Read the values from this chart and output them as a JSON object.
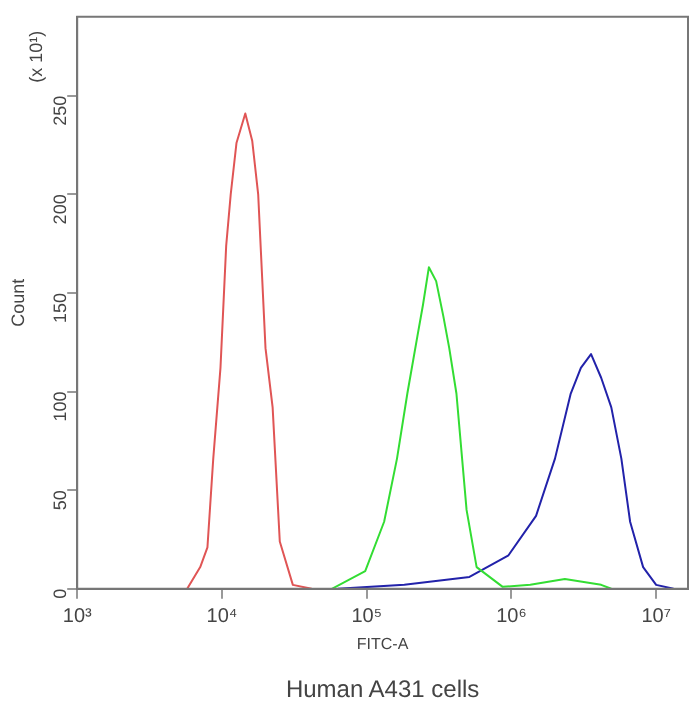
{
  "chart_data": {
    "type": "line",
    "xlabel": "FITC-A",
    "ylabel": "Count",
    "annotations": [
      "(x 10¹)",
      "Human A431 cells"
    ],
    "log": "x",
    "grid": false,
    "legend": false,
    "marker": "none",
    "xlim": [
      1000,
      16600000
    ],
    "xticks": [
      {
        "value": 1000,
        "label": "10³"
      },
      {
        "value": 10000,
        "label": "10⁴"
      },
      {
        "value": 100000,
        "label": "10⁵"
      },
      {
        "value": 1000000,
        "label": "10⁶"
      },
      {
        "value": 10000000,
        "label": "10⁷"
      }
    ],
    "ylim": [
      0,
      290
    ],
    "yticks": [
      0,
      50,
      100,
      150,
      200,
      250
    ],
    "series": [
      {
        "color": "#e05555",
        "x": [
          5750,
          7080,
          7940,
          8710,
          9770,
          10700,
          11500,
          12600,
          14500,
          16200,
          17800,
          20000,
          22400,
          25100,
          30900,
          41700
        ],
        "values": [
          0,
          11,
          21,
          66,
          112,
          174,
          200,
          226,
          241,
          227,
          200,
          122,
          92,
          24,
          2,
          0
        ]
      },
      {
        "color": "#33dd33",
        "x": [
          57500,
          97700,
          132000,
          162000,
          191000,
          224000,
          245000,
          269000,
          302000,
          339000,
          372000,
          417000,
          490000,
          575000,
          871000,
          1350000,
          2340000,
          4170000,
          4900000
        ],
        "values": [
          0,
          9,
          34,
          66,
          99,
          128,
          144,
          163,
          156,
          138,
          122,
          99,
          40,
          11,
          1,
          2,
          5,
          2,
          0
        ]
      },
      {
        "color": "#2222aa",
        "x": [
          63100,
          182000,
          513000,
          955000,
          1480000,
          2000000,
          2570000,
          3020000,
          3550000,
          4170000,
          4900000,
          5750000,
          6610000,
          8130000,
          10000000,
          13200000
        ],
        "values": [
          0,
          2,
          6,
          17,
          37,
          66,
          99,
          112,
          119,
          107,
          92,
          66,
          34,
          11,
          2,
          0
        ]
      }
    ]
  }
}
